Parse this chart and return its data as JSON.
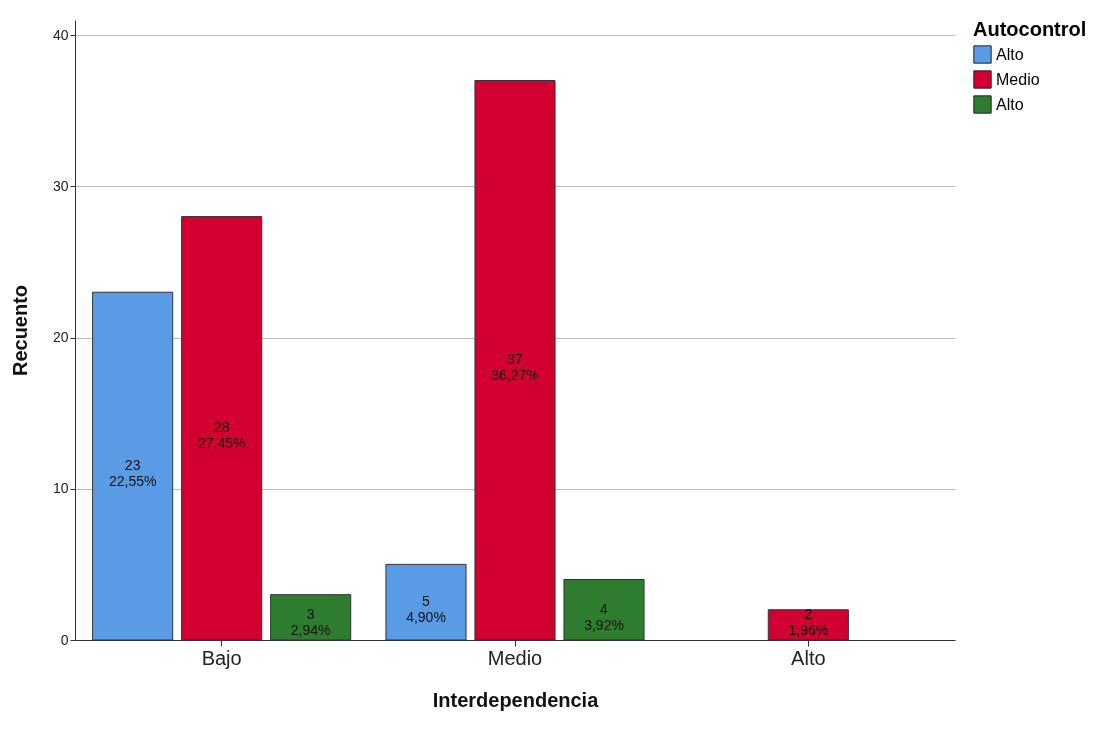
{
  "chart_data": {
    "type": "bar",
    "xlabel": "Interdependencia",
    "ylabel": "Recuento",
    "legend_title": "Autocontrol",
    "categories": [
      "Bajo",
      "Medio",
      "Alto"
    ],
    "series": [
      {
        "name": "Alto",
        "color": "#5a9be6",
        "values": [
          23,
          5,
          null
        ],
        "value_labels": [
          "23\n22,55%",
          "5\n4,90%",
          null
        ]
      },
      {
        "name": "Medio",
        "color": "#d20030",
        "values": [
          28,
          37,
          2
        ],
        "value_labels": [
          "28\n27,45%",
          "37\n36,27%",
          "2\n1,96%"
        ]
      },
      {
        "name": "Alto",
        "color": "#2e7d2e",
        "values": [
          3,
          4,
          null
        ],
        "value_labels": [
          "3\n2,94%",
          "4\n3,92%",
          null
        ]
      }
    ],
    "ylim": [
      0,
      41
    ],
    "yticks": [
      0,
      10,
      20,
      30,
      40
    ],
    "grid": "y",
    "legend": "top right"
  }
}
